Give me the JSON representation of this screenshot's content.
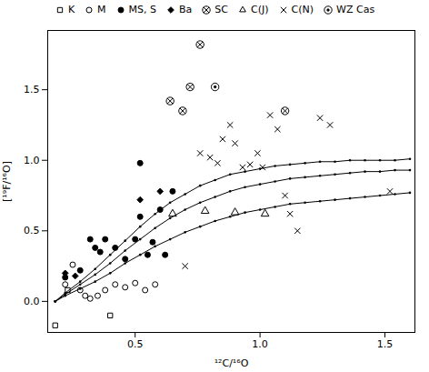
{
  "chart_data": {
    "type": "scatter",
    "xlabel": "¹²C/¹⁶O",
    "ylabel": "[¹⁹F/¹⁶O]",
    "xlim": [
      0.15,
      1.62
    ],
    "ylim": [
      -0.22,
      1.92
    ],
    "xticks": [
      0.5,
      {
        "value": 1,
        "label": "1.0"
      },
      1.5
    ],
    "yticks": [
      {
        "value": 0,
        "label": "0.0"
      },
      0.5,
      {
        "value": 1,
        "label": "1.0"
      },
      1.5
    ],
    "color": "#000000",
    "legend": "top",
    "series": [
      {
        "type": "line",
        "marker": "dot",
        "line_style": "solid",
        "x": [
          0.18,
          0.22,
          0.28,
          0.34,
          0.4,
          0.46,
          0.52,
          0.58,
          0.64,
          0.7,
          0.76,
          0.82,
          0.88,
          0.94,
          1.0,
          1.06,
          1.12,
          1.18,
          1.24,
          1.3,
          1.36,
          1.42,
          1.48,
          1.54,
          1.6
        ],
        "values": [
          0.0,
          0.04,
          0.09,
          0.14,
          0.2,
          0.27,
          0.33,
          0.39,
          0.44,
          0.49,
          0.53,
          0.57,
          0.6,
          0.63,
          0.65,
          0.67,
          0.69,
          0.7,
          0.71,
          0.72,
          0.73,
          0.74,
          0.75,
          0.76,
          0.77
        ]
      },
      {
        "type": "line",
        "marker": "dot",
        "line_style": "solid",
        "x": [
          0.18,
          0.22,
          0.28,
          0.34,
          0.4,
          0.46,
          0.52,
          0.58,
          0.64,
          0.7,
          0.76,
          0.82,
          0.88,
          0.94,
          1.0,
          1.06,
          1.12,
          1.18,
          1.24,
          1.3,
          1.36,
          1.42,
          1.48,
          1.54,
          1.6
        ],
        "values": [
          0.0,
          0.05,
          0.12,
          0.19,
          0.27,
          0.36,
          0.44,
          0.52,
          0.59,
          0.65,
          0.7,
          0.74,
          0.78,
          0.81,
          0.83,
          0.85,
          0.87,
          0.88,
          0.89,
          0.9,
          0.91,
          0.92,
          0.92,
          0.93,
          0.93
        ]
      },
      {
        "type": "line",
        "marker": "dot",
        "line_style": "solid",
        "x": [
          0.18,
          0.22,
          0.28,
          0.34,
          0.4,
          0.46,
          0.52,
          0.58,
          0.64,
          0.7,
          0.76,
          0.82,
          0.88,
          0.94,
          1.0,
          1.06,
          1.12,
          1.18,
          1.24,
          1.3,
          1.36,
          1.42,
          1.48,
          1.54,
          1.6
        ],
        "values": [
          0.0,
          0.06,
          0.14,
          0.23,
          0.33,
          0.43,
          0.53,
          0.62,
          0.7,
          0.76,
          0.82,
          0.86,
          0.9,
          0.92,
          0.94,
          0.96,
          0.97,
          0.98,
          0.99,
          0.99,
          1.0,
          1.0,
          1.0,
          1.0,
          1.01
        ]
      },
      {
        "name": "K",
        "type": "scatter",
        "marker": "square",
        "x": [
          0.18,
          0.23,
          0.4
        ],
        "values": [
          -0.17,
          0.08,
          -0.1
        ]
      },
      {
        "name": "M",
        "type": "scatter",
        "marker": "circle",
        "x": [
          0.22,
          0.25,
          0.28,
          0.3,
          0.32,
          0.35,
          0.38,
          0.42,
          0.46,
          0.5,
          0.54,
          0.58
        ],
        "values": [
          0.12,
          0.26,
          0.08,
          0.04,
          0.02,
          0.04,
          0.08,
          0.12,
          0.1,
          0.13,
          0.08,
          0.12
        ]
      },
      {
        "name": "MS, S",
        "type": "scatter",
        "marker": "disc",
        "x": [
          0.22,
          0.28,
          0.32,
          0.34,
          0.36,
          0.38,
          0.42,
          0.46,
          0.5,
          0.52,
          0.55,
          0.57,
          0.6,
          0.62,
          0.65,
          0.52
        ],
        "values": [
          0.17,
          0.22,
          0.44,
          0.38,
          0.35,
          0.44,
          0.38,
          0.3,
          0.44,
          0.6,
          0.33,
          0.42,
          0.65,
          0.33,
          0.78,
          0.98
        ]
      },
      {
        "name": "Ba",
        "type": "scatter",
        "marker": "diamond",
        "x": [
          0.22,
          0.26,
          0.52,
          0.6
        ],
        "values": [
          0.2,
          0.18,
          0.72,
          0.78
        ]
      },
      {
        "name": "SC",
        "type": "scatter",
        "marker": "otimes",
        "x": [
          0.64,
          0.69,
          0.72,
          0.76,
          1.1
        ],
        "values": [
          1.42,
          1.35,
          1.52,
          1.82,
          1.35
        ]
      },
      {
        "name": "C(J)",
        "type": "scatter",
        "marker": "triangle",
        "x": [
          0.65,
          0.78,
          0.9,
          1.02
        ],
        "values": [
          0.62,
          0.64,
          0.63,
          0.62
        ]
      },
      {
        "name": "C(N)",
        "type": "scatter",
        "marker": "cross",
        "x": [
          0.76,
          0.8,
          0.83,
          0.85,
          0.88,
          0.9,
          0.93,
          0.96,
          0.99,
          1.01,
          1.04,
          1.07,
          1.1,
          1.12,
          1.15,
          1.24,
          1.28,
          1.52,
          0.7
        ],
        "values": [
          1.05,
          1.02,
          0.98,
          1.15,
          1.25,
          1.12,
          0.95,
          0.97,
          1.05,
          0.95,
          1.32,
          1.22,
          0.75,
          0.62,
          0.5,
          1.3,
          1.25,
          0.78,
          0.25
        ]
      },
      {
        "name": "WZ Cas",
        "type": "scatter",
        "marker": "odot",
        "x": [
          0.82
        ],
        "values": [
          1.52
        ]
      }
    ]
  }
}
